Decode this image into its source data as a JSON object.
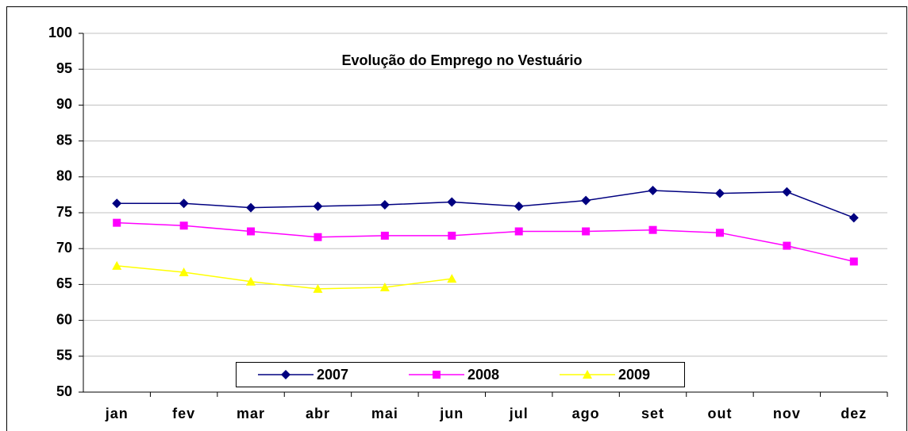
{
  "chart_data": {
    "type": "line",
    "title": "Evolução do Emprego no Vestuário",
    "categories": [
      "jan",
      "fev",
      "mar",
      "abr",
      "mai",
      "jun",
      "jul",
      "ago",
      "set",
      "out",
      "nov",
      "dez"
    ],
    "series": [
      {
        "name": "2007",
        "color": "#000080",
        "marker": "diamond",
        "values": [
          76.3,
          76.3,
          75.7,
          75.9,
          76.1,
          76.5,
          75.9,
          76.7,
          78.1,
          77.7,
          77.9,
          74.3
        ]
      },
      {
        "name": "2008",
        "color": "#ff00ff",
        "marker": "square",
        "values": [
          73.6,
          73.2,
          72.4,
          71.6,
          71.8,
          71.8,
          72.4,
          72.4,
          72.6,
          72.2,
          70.4,
          68.2
        ]
      },
      {
        "name": "2009",
        "color": "#ffff00",
        "marker": "triangle",
        "values": [
          67.6,
          66.7,
          65.4,
          64.4,
          64.6,
          65.8,
          null,
          null,
          null,
          null,
          null,
          null
        ]
      }
    ],
    "ylim": [
      50,
      100
    ],
    "yticks": [
      50,
      55,
      60,
      65,
      70,
      75,
      80,
      85,
      90,
      95,
      100
    ],
    "grid": true,
    "legend": "bottom"
  }
}
